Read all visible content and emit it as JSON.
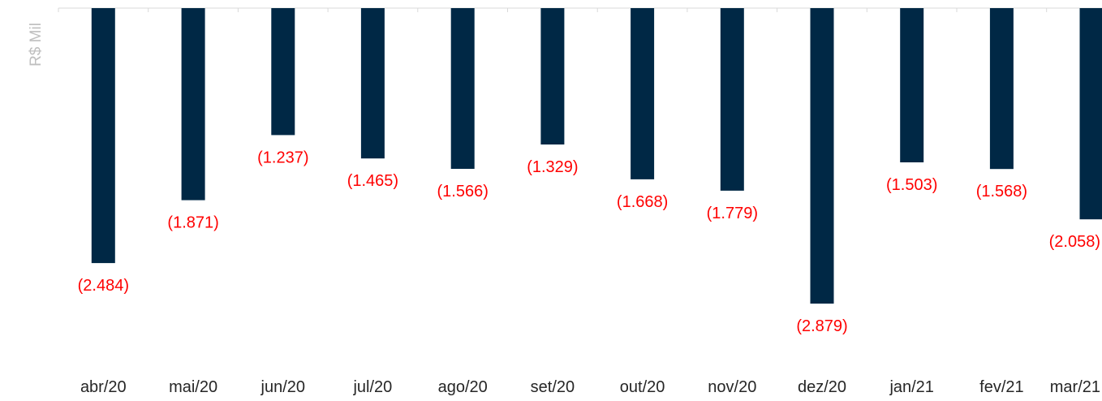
{
  "chart_data": {
    "type": "bar",
    "ylabel": "R$ Mil",
    "categories": [
      "abr/20",
      "mai/20",
      "jun/20",
      "jul/20",
      "ago/20",
      "set/20",
      "out/20",
      "nov/20",
      "dez/20",
      "jan/21",
      "fev/21",
      "mar/21"
    ],
    "values": [
      -2484,
      -1871,
      -1237,
      -1465,
      -1566,
      -1329,
      -1668,
      -1779,
      -2879,
      -1503,
      -1568,
      -2058
    ],
    "data_labels": [
      "(2.484)",
      "(1.871)",
      "(1.237)",
      "(1.465)",
      "(1.566)",
      "(1.329)",
      "(1.668)",
      "(1.779)",
      "(2.879)",
      "(1.503)",
      "(1.568)",
      "(2.058)"
    ],
    "ylim": [
      -3000,
      0
    ],
    "grid": false,
    "bar_color": "#002845",
    "label_color": "#ff0000",
    "axis_color": "#d9d9d9"
  }
}
